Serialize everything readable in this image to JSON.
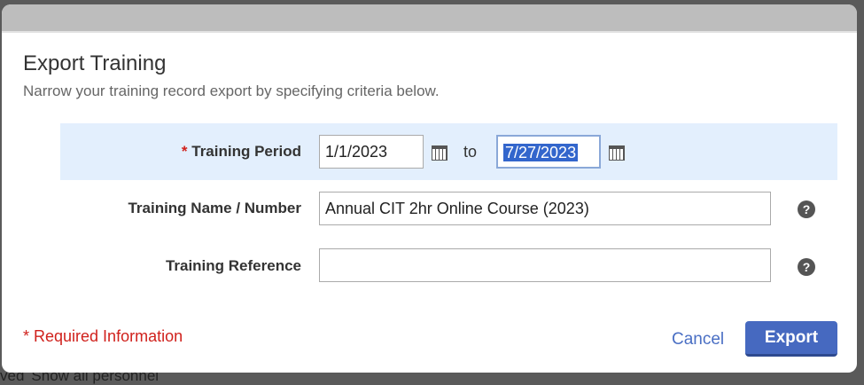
{
  "background": {
    "partial_text": "ved",
    "link": "Show all personnel"
  },
  "dialog": {
    "title": "Export Training",
    "subtitle": "Narrow your training record export by specifying criteria below.",
    "fields": {
      "period": {
        "required_mark": "*",
        "label": "Training Period",
        "from": "1/1/2023",
        "to_label": "to",
        "to": "7/27/2023"
      },
      "name": {
        "label": "Training Name / Number",
        "value": "Annual CIT 2hr Online Course (2023)"
      },
      "reference": {
        "label": "Training Reference",
        "value": ""
      }
    },
    "required_info": "* Required Information",
    "cancel_label": "Cancel",
    "export_label": "Export",
    "help_glyph": "?"
  }
}
